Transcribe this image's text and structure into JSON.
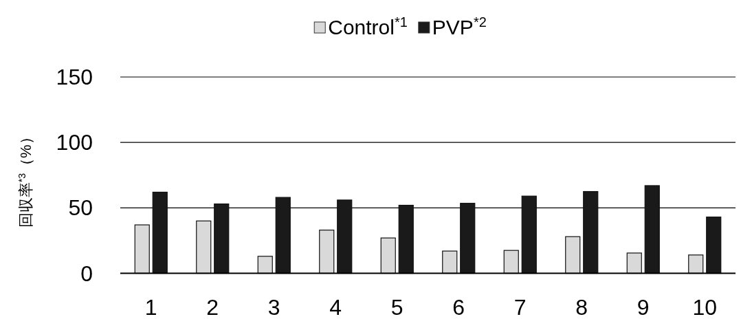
{
  "chart_data": {
    "type": "bar",
    "ylabel": "回収率$^{*3}$（%）",
    "categories": [
      "1",
      "2",
      "3",
      "4",
      "5",
      "6",
      "7",
      "8",
      "9",
      "10"
    ],
    "series": [
      {
        "name": "Control$^{*1}$",
        "color": "#d9d9d9",
        "values": [
          37,
          40,
          13,
          33,
          27,
          17,
          17.5,
          28,
          15.5,
          14
        ]
      },
      {
        "name": "PVP$^{*2}$",
        "color": "#1a1a1a",
        "values": [
          62,
          53,
          58,
          56,
          52,
          53.5,
          59,
          62.5,
          67,
          43
        ]
      }
    ],
    "ylim": [
      0,
      150
    ],
    "yticks": [
      0,
      50,
      100,
      150
    ],
    "grid": "y",
    "legend": "top"
  }
}
